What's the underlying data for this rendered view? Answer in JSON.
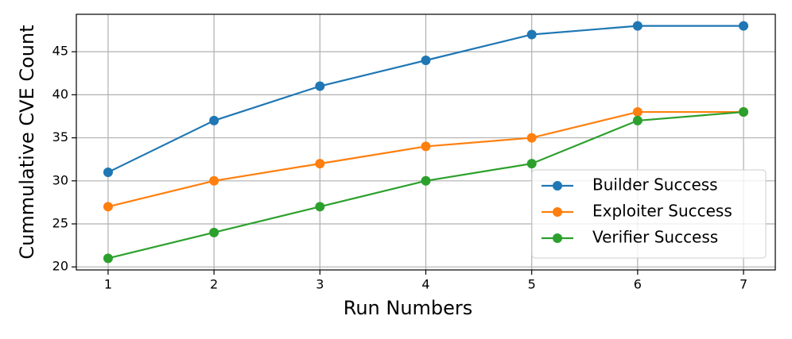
{
  "chart_data": {
    "type": "line",
    "xlabel": "Run Numbers",
    "ylabel": "Cummulative CVE Count",
    "x": [
      1,
      2,
      3,
      4,
      5,
      6,
      7
    ],
    "series": [
      {
        "name": "Builder Success",
        "color": "#1f77b4",
        "values": [
          31,
          37,
          41,
          44,
          47,
          48,
          48
        ]
      },
      {
        "name": "Exploiter Success",
        "color": "#ff7f0e",
        "values": [
          27,
          30,
          32,
          34,
          35,
          38,
          38
        ]
      },
      {
        "name": "Verifier Success",
        "color": "#2ca02c",
        "values": [
          21,
          24,
          27,
          30,
          32,
          37,
          38
        ]
      }
    ],
    "xlim": [
      0.7,
      7.3
    ],
    "xticks": [
      1,
      2,
      3,
      4,
      5,
      6,
      7
    ],
    "ylim": [
      19.65,
      49.35
    ],
    "yticks": [
      20,
      25,
      30,
      35,
      40,
      45
    ],
    "grid": true,
    "legend": "lower right"
  }
}
